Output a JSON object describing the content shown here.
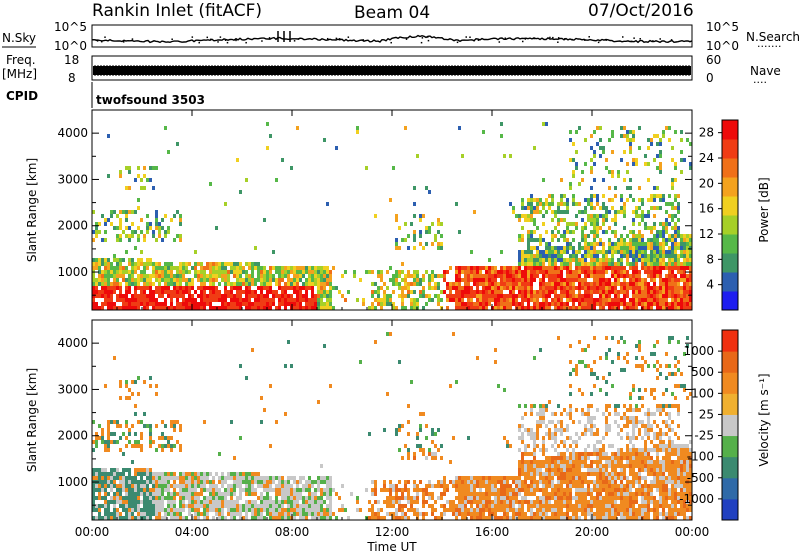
{
  "header": {
    "title": "Rankin Inlet (fitACF)",
    "beam": "Beam 04",
    "date": "07/Oct/2016"
  },
  "top_panels": {
    "nsky_label": "N.Sky",
    "nsearch_label": "N.Search",
    "nsearch_marker": "·······",
    "nsky_ticks": [
      "10^5",
      "10^0"
    ],
    "nsearch_ticks": [
      "10^5",
      "10^0"
    ],
    "freq_label": "Freq.",
    "freq_unit": "[MHz]",
    "freq_ticks": [
      "18",
      "8"
    ],
    "nave_label": "Nave",
    "nave_marker": "····",
    "nave_ticks": [
      "60",
      "0"
    ],
    "cpid_label": "CPID",
    "cpid_value": "twofsound 3503"
  },
  "colors": {
    "power": [
      "#1e1ef0",
      "#2c5fb0",
      "#3e9666",
      "#56b848",
      "#a6d028",
      "#f0d020",
      "#f4a21e",
      "#f07018",
      "#f03c14",
      "#ee0a0a"
    ],
    "velocity": [
      "#2040c0",
      "#2f6aa8",
      "#3b8a70",
      "#55b04a",
      "#c8c8c8",
      "#f0b030",
      "#f08a20",
      "#e86818",
      "#f03010"
    ]
  },
  "chart_data": [
    {
      "type": "heatmap",
      "name": "power",
      "ylabel": "Slant Range [km]",
      "xlabel": "",
      "xlim": [
        0,
        24
      ],
      "ylim": [
        180,
        4500
      ],
      "xticks": [
        "00:00",
        "04:00",
        "08:00",
        "12:00",
        "16:00",
        "20:00",
        "00:00"
      ],
      "yticks": [
        1000,
        2000,
        3000,
        4000
      ],
      "colorbar_label": "Power [dB]",
      "colorbar_ticks": [
        28,
        24,
        20,
        16,
        12,
        8,
        4
      ],
      "colorbar_range": [
        0,
        30
      ]
    },
    {
      "type": "heatmap",
      "name": "velocity",
      "ylabel": "Slant Range [km]",
      "xlabel": "Time UT",
      "xlim": [
        0,
        24
      ],
      "ylim": [
        180,
        4500
      ],
      "xticks": [
        "00:00",
        "04:00",
        "08:00",
        "12:00",
        "16:00",
        "20:00",
        "00:00"
      ],
      "yticks": [
        1000,
        2000,
        3000,
        4000
      ],
      "colorbar_label": "Velocity [m s⁻¹]",
      "colorbar_ticks": [
        1000,
        500,
        100,
        25,
        -25,
        -100,
        -500,
        -1000
      ]
    }
  ]
}
